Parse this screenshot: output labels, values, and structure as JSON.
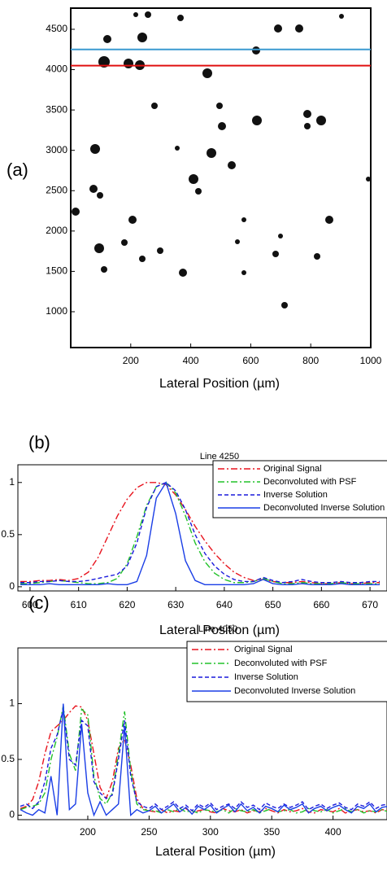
{
  "chart_data": [
    {
      "type": "image",
      "label": "(a)",
      "xlabel": "Lateral Position (µm)",
      "xlim": [
        0,
        1000
      ],
      "xticks": [
        200,
        400,
        600,
        800,
        1000
      ],
      "ylim": [
        556,
        4762
      ],
      "yticks": [
        1000,
        1500,
        2000,
        2500,
        3000,
        3500,
        4000,
        4500
      ],
      "hlines": [
        {
          "value": 4250,
          "color": "#3a9ad0"
        },
        {
          "value": 4050,
          "color": "#e01010"
        }
      ]
    },
    {
      "type": "line",
      "label": "(b)",
      "title": "Line 4250",
      "xlabel": "Lateral Position (µm)",
      "x": [
        598,
        600,
        602,
        604,
        606,
        608,
        610,
        612,
        614,
        616,
        618,
        620,
        622,
        624,
        626,
        628,
        630,
        632,
        634,
        636,
        638,
        640,
        642,
        644,
        646,
        648,
        650,
        652,
        654,
        656,
        658,
        660,
        662,
        664,
        666,
        668,
        670,
        672
      ],
      "xlim": [
        597.5,
        673.5
      ],
      "xticks": [
        600,
        610,
        620,
        630,
        640,
        650,
        660,
        670
      ],
      "ylim": [
        -0.04,
        1.17
      ],
      "yticks": [
        0,
        0.5,
        1
      ],
      "legend": "upper right",
      "series": [
        {
          "name": "Original Signal",
          "color": "#e8141e",
          "style": "dashdot",
          "values": [
            0.05,
            0.05,
            0.06,
            0.06,
            0.07,
            0.06,
            0.08,
            0.14,
            0.28,
            0.48,
            0.68,
            0.84,
            0.95,
            1,
            1,
            0.98,
            0.88,
            0.74,
            0.58,
            0.44,
            0.32,
            0.22,
            0.14,
            0.09,
            0.06,
            0.07,
            0.05,
            0.04,
            0.04,
            0.05,
            0.04,
            0.03,
            0.03,
            0.04,
            0.03,
            0.03,
            0.04,
            0.04
          ]
        },
        {
          "name": "Deconvoluted with PSF",
          "color": "#22c22a",
          "style": "dashdot",
          "values": [
            0.03,
            0.03,
            0.04,
            0.05,
            0.06,
            0.05,
            0.04,
            0.03,
            0.03,
            0.04,
            0.08,
            0.22,
            0.48,
            0.78,
            0.96,
            1,
            0.9,
            0.68,
            0.42,
            0.24,
            0.13,
            0.07,
            0.04,
            0.04,
            0.05,
            0.08,
            0.05,
            0.03,
            0.03,
            0.04,
            0.03,
            0.03,
            0.03,
            0.04,
            0.03,
            0.03,
            0.03,
            0.03
          ]
        },
        {
          "name": "Inverse Solution",
          "color": "#1a1adc",
          "style": "dashed",
          "values": [
            0.04,
            0.04,
            0.05,
            0.05,
            0.06,
            0.05,
            0.05,
            0.06,
            0.08,
            0.1,
            0.12,
            0.2,
            0.42,
            0.76,
            0.96,
            1,
            0.92,
            0.74,
            0.5,
            0.32,
            0.2,
            0.12,
            0.07,
            0.05,
            0.05,
            0.09,
            0.06,
            0.04,
            0.05,
            0.07,
            0.05,
            0.04,
            0.04,
            0.05,
            0.04,
            0.04,
            0.05,
            0.05
          ]
        },
        {
          "name": "Deconvoluted Inverse Solution",
          "color": "#1a3ee6",
          "style": "solid",
          "values": [
            0.02,
            0.02,
            0.02,
            0.03,
            0.02,
            0.02,
            0.02,
            0.02,
            0.02,
            0.03,
            0.02,
            0.02,
            0.05,
            0.3,
            0.85,
            1,
            0.7,
            0.25,
            0.06,
            0.02,
            0.02,
            0.02,
            0.02,
            0.02,
            0.03,
            0.07,
            0.03,
            0.02,
            0.02,
            0.03,
            0.02,
            0.02,
            0.02,
            0.03,
            0.02,
            0.02,
            0.02,
            0.02
          ]
        }
      ]
    },
    {
      "type": "line",
      "label": "(c)",
      "title": "Line 4050",
      "xlabel": "Lateral Position (µm)",
      "x": [
        145,
        150,
        155,
        160,
        165,
        170,
        175,
        180,
        185,
        190,
        195,
        200,
        205,
        210,
        215,
        220,
        225,
        230,
        235,
        240,
        245,
        250,
        255,
        260,
        265,
        270,
        275,
        280,
        285,
        290,
        295,
        300,
        305,
        310,
        315,
        320,
        325,
        330,
        335,
        340,
        345,
        350,
        355,
        360,
        365,
        370,
        375,
        380,
        385,
        390,
        395,
        400,
        405,
        410,
        415,
        420,
        425,
        430,
        435,
        440,
        445
      ],
      "xlim": [
        143,
        444
      ],
      "xticks": [
        200,
        250,
        300,
        350,
        400
      ],
      "ylim": [
        -0.04,
        1.5
      ],
      "yticks": [
        0,
        0.5,
        1
      ],
      "legend": "upper right",
      "series": [
        {
          "name": "Original Signal",
          "color": "#e8141e",
          "style": "dashdot",
          "values": [
            0.06,
            0.08,
            0.14,
            0.3,
            0.55,
            0.75,
            0.8,
            0.85,
            0.92,
            0.98,
            0.97,
            0.85,
            0.55,
            0.25,
            0.15,
            0.3,
            0.6,
            0.68,
            0.45,
            0.15,
            0.06,
            0.04,
            0.03,
            0.05,
            0.02,
            0.04,
            0.03,
            0.06,
            0.02,
            0.04,
            0.05,
            0.03,
            0.02,
            0.06,
            0.04,
            0.03,
            0.05,
            0.02,
            0.04,
            0.03,
            0.06,
            0.04,
            0.02,
            0.05,
            0.03,
            0.04,
            0.06,
            0.03,
            0.02,
            0.05,
            0.04,
            0.03,
            0.06,
            0.02,
            0.04,
            0.05,
            0.03,
            0.04,
            0.02,
            0.05,
            0.04
          ]
        },
        {
          "name": "Deconvoluted with PSF",
          "color": "#22c22a",
          "style": "dashdot",
          "values": [
            0.05,
            0.07,
            0.08,
            0.1,
            0.2,
            0.5,
            0.7,
            0.98,
            0.55,
            0.4,
            0.95,
            0.9,
            0.35,
            0.15,
            0.1,
            0.2,
            0.55,
            0.93,
            0.4,
            0.1,
            0.05,
            0.04,
            0.04,
            0.02,
            0.05,
            0.03,
            0.06,
            0.03,
            0.04,
            0.02,
            0.05,
            0.04,
            0.03,
            0.05,
            0.02,
            0.06,
            0.04,
            0.03,
            0.05,
            0.02,
            0.04,
            0.06,
            0.03,
            0.04,
            0.05,
            0.02,
            0.03,
            0.06,
            0.04,
            0.03,
            0.05,
            0.02,
            0.04,
            0.06,
            0.03,
            0.05,
            0.02,
            0.04,
            0.03,
            0.05,
            0.03
          ]
        },
        {
          "name": "Inverse Solution",
          "color": "#1a1adc",
          "style": "dashed",
          "values": [
            0.08,
            0.1,
            0.06,
            0.12,
            0.3,
            0.6,
            0.72,
            0.95,
            0.5,
            0.45,
            0.85,
            0.8,
            0.3,
            0.2,
            0.15,
            0.18,
            0.5,
            0.85,
            0.35,
            0.12,
            0.08,
            0.06,
            0.1,
            0.05,
            0.08,
            0.12,
            0.06,
            0.09,
            0.04,
            0.1,
            0.07,
            0.11,
            0.05,
            0.08,
            0.1,
            0.06,
            0.12,
            0.07,
            0.09,
            0.05,
            0.11,
            0.08,
            0.06,
            0.1,
            0.07,
            0.09,
            0.12,
            0.05,
            0.08,
            0.1,
            0.06,
            0.09,
            0.11,
            0.07,
            0.05,
            0.1,
            0.08,
            0.12,
            0.06,
            0.09,
            0.1
          ]
        },
        {
          "name": "Deconvoluted Inverse Solution",
          "color": "#1a3ee6",
          "style": "solid",
          "values": [
            0.05,
            0.02,
            0,
            0.05,
            0.02,
            0.35,
            0,
            1,
            0.05,
            0.1,
            0.82,
            0.2,
            0,
            0.12,
            0,
            0.05,
            0.1,
            0.8,
            0,
            0.05,
            0.02,
            0.04,
            0.08,
            0.02,
            0.06,
            0.1,
            0.03,
            0.07,
            0.01,
            0.08,
            0.05,
            0.09,
            0.02,
            0.06,
            0.09,
            0.03,
            0.1,
            0.04,
            0.07,
            0.02,
            0.08,
            0.06,
            0.03,
            0.09,
            0.05,
            0.07,
            0.1,
            0.02,
            0.06,
            0.08,
            0.04,
            0.07,
            0.09,
            0.05,
            0.02,
            0.08,
            0.06,
            0.1,
            0.03,
            0.07,
            0.08
          ]
        }
      ]
    }
  ]
}
